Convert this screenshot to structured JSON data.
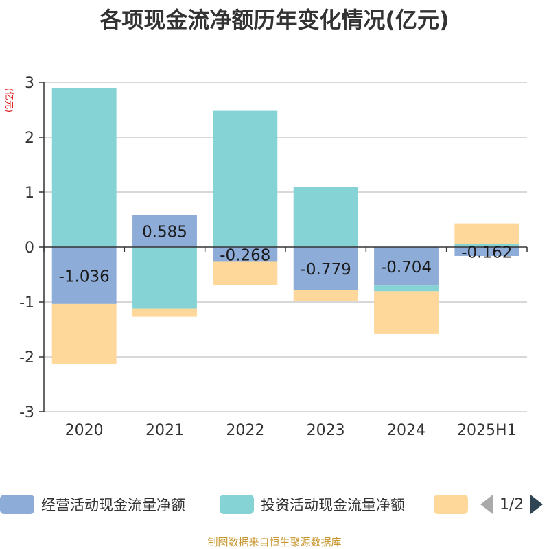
{
  "chart_data": {
    "type": "bar",
    "stacked": true,
    "title": "各项现金流净额历年变化情况(亿元)",
    "ylabel": "(亿元)",
    "categories": [
      "2020",
      "2021",
      "2022",
      "2023",
      "2024",
      "2025H1"
    ],
    "ylim": [
      -3,
      3
    ],
    "yticks": [
      3,
      2,
      1,
      0,
      -1,
      -2,
      -3
    ],
    "grid": true,
    "legend_position": "bottom",
    "series": [
      {
        "name": "经营活动现金流量净额",
        "color": "#8eacd8",
        "values": [
          -1.036,
          0.585,
          -0.268,
          -0.779,
          -0.704,
          -0.162
        ],
        "labels": [
          "-1.036",
          "0.585",
          "-0.268",
          "-0.779",
          "-0.704",
          "-0.162"
        ]
      },
      {
        "name": "投资活动现金流量净额",
        "color": "#86d3d6",
        "values": [
          2.9,
          -1.12,
          2.48,
          1.1,
          -0.1,
          0.05
        ]
      },
      {
        "name": "",
        "color": "#fdd89a",
        "values": [
          -1.09,
          -0.15,
          -0.42,
          -0.2,
          -0.77,
          0.38
        ]
      }
    ]
  },
  "legend": {
    "page": "1/2"
  },
  "source_note": "制图数据来自恒生聚源数据库"
}
